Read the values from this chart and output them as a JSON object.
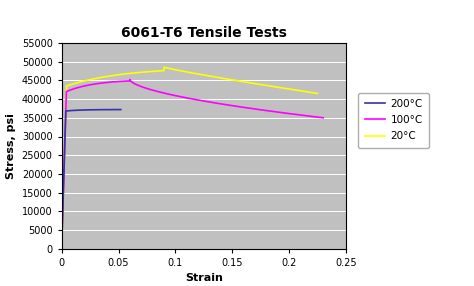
{
  "title": "6061-T6 Tensile Tests",
  "xlabel": "Strain",
  "ylabel": "Stress, psi",
  "xlim": [
    0,
    0.25
  ],
  "ylim": [
    0,
    55000
  ],
  "xticks": [
    0,
    0.05,
    0.1,
    0.15,
    0.2,
    0.25
  ],
  "yticks": [
    0,
    5000,
    10000,
    15000,
    20000,
    25000,
    30000,
    35000,
    40000,
    45000,
    50000,
    55000
  ],
  "plot_bg": "#c0c0c0",
  "fig_bg": "#ffffff",
  "legend_labels": [
    "200°C",
    "100°C",
    "20°C"
  ],
  "colors": {
    "200C": "#3333aa",
    "100C": "#ff00ff",
    "20C": "#ffff00"
  },
  "linewidth": 1.2,
  "grid_color": "#aaaaaa",
  "title_fontsize": 10,
  "axis_label_fontsize": 8,
  "tick_fontsize": 7,
  "legend_fontsize": 7.5
}
